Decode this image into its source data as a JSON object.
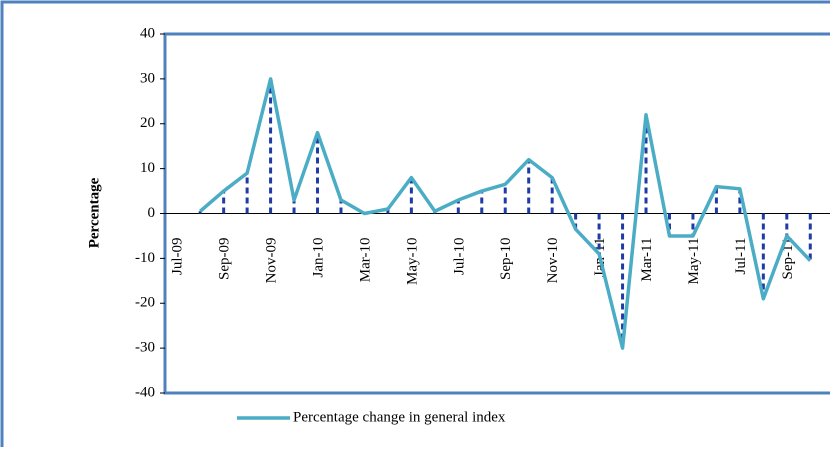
{
  "chart_data": {
    "type": "line",
    "y_label": "Percentage",
    "categories": [
      "Jul-09",
      null,
      "Sep-09",
      null,
      "Nov-09",
      null,
      "Jan-10",
      null,
      "Mar-10",
      null,
      "May-10",
      null,
      "Jul-10",
      null,
      "Sep-10",
      null,
      "Nov-10",
      null,
      "Jan-11",
      null,
      "Mar-11",
      null,
      "May-11",
      null,
      "Jul-11",
      null,
      "Sep-11",
      null
    ],
    "series": [
      {
        "name": "Percentage change in general index",
        "color": "#4bacc6",
        "values": [
          null,
          0.5,
          5,
          9,
          30,
          3,
          18,
          3,
          0,
          1,
          8,
          0.5,
          3,
          5,
          6.5,
          12,
          8,
          -3.5,
          -9,
          -30,
          22,
          -5,
          -5,
          6,
          5.5,
          -19,
          -5,
          -10.5
        ]
      }
    ],
    "drop_line_color": "#1f3ca6",
    "ylim": [
      -40,
      40
    ],
    "yticks": [
      -40,
      -30,
      -20,
      -10,
      0,
      10,
      20,
      30,
      40
    ]
  }
}
